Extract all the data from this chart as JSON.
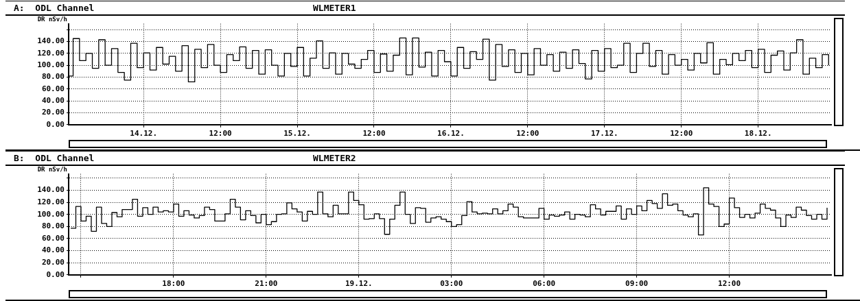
{
  "chart_data": [
    {
      "type": "step",
      "title": "A:  ODL Channel",
      "subtitle": "WLMETER1",
      "ylabel": "DR nSv/h",
      "xlim": [
        "--12-13T12:18",
        "--12-18T11:24"
      ],
      "xticks": [
        {
          "value": "--12-14",
          "label": "14.12."
        },
        {
          "value": "--12-14T12:00",
          "label": "12:00"
        },
        {
          "value": "--12-15",
          "label": "15.12."
        },
        {
          "value": "--12-15T12:00",
          "label": "12:00"
        },
        {
          "value": "--12-16",
          "label": "16.12."
        },
        {
          "value": "--12-16T12:00",
          "label": "12:00"
        },
        {
          "value": "--12-17",
          "label": "17.12."
        },
        {
          "value": "--12-17T12:00",
          "label": "12:00"
        },
        {
          "value": "--12-18",
          "label": "18.12."
        }
      ],
      "ylim": [
        0,
        170
      ],
      "yticks": [
        {
          "value": 0,
          "label": "0.00"
        },
        {
          "value": 20,
          "label": "20.00"
        },
        {
          "value": 40,
          "label": "40.00"
        },
        {
          "value": 60,
          "label": "60.00"
        },
        {
          "value": 80,
          "label": "80.00"
        },
        {
          "value": 100,
          "label": "100.00"
        },
        {
          "value": 120,
          "label": "120.00"
        },
        {
          "value": 140,
          "label": "140.00"
        },
        {
          "value": 160,
          "label": null
        }
      ],
      "grid": true,
      "marker": "none",
      "line_style": "solid",
      "series": [
        {
          "color": "#000000",
          "x": [
            "--12-13T12:24",
            "--12-13T13:00",
            "--12-13T14:00",
            "--12-13T15:00",
            "--12-13T16:00",
            "--12-13T17:00",
            "--12-13T18:00",
            "--12-13T19:00",
            "--12-13T20:00",
            "--12-13T21:00",
            "--12-13T22:00",
            "--12-13T23:00",
            "--12-14T00:00",
            "--12-14T01:00",
            "--12-14T02:00",
            "--12-14T03:00",
            "--12-14T04:00",
            "--12-14T05:00",
            "--12-14T06:00",
            "--12-14T07:00",
            "--12-14T08:00",
            "--12-14T09:00",
            "--12-14T10:00",
            "--12-14T11:00",
            "--12-14T12:00",
            "--12-14T13:00",
            "--12-14T14:00",
            "--12-14T15:00",
            "--12-14T16:00",
            "--12-14T17:00",
            "--12-14T18:00",
            "--12-14T19:00",
            "--12-14T20:00",
            "--12-14T21:00",
            "--12-14T22:00",
            "--12-14T23:00",
            "--12-15T00:00",
            "--12-15T01:00",
            "--12-15T02:00",
            "--12-15T03:00",
            "--12-15T04:00",
            "--12-15T05:00",
            "--12-15T06:00",
            "--12-15T07:00",
            "--12-15T08:00",
            "--12-15T09:00",
            "--12-15T10:00",
            "--12-15T11:00",
            "--12-15T12:00",
            "--12-15T13:00",
            "--12-15T14:00",
            "--12-15T15:00",
            "--12-15T16:00",
            "--12-15T17:00",
            "--12-15T18:00",
            "--12-15T19:00",
            "--12-15T20:00",
            "--12-15T21:00",
            "--12-15T22:00",
            "--12-15T23:00",
            "--12-16T00:00",
            "--12-16T01:00",
            "--12-16T02:00",
            "--12-16T03:00",
            "--12-16T04:00",
            "--12-16T05:00",
            "--12-16T06:00",
            "--12-16T07:00",
            "--12-16T08:00",
            "--12-16T09:00",
            "--12-16T10:00",
            "--12-16T11:00",
            "--12-16T12:00",
            "--12-16T13:00",
            "--12-16T14:00",
            "--12-16T15:00",
            "--12-16T16:00",
            "--12-16T17:00",
            "--12-16T18:00",
            "--12-16T19:00",
            "--12-16T20:00",
            "--12-16T21:00",
            "--12-16T22:00",
            "--12-16T23:00",
            "--12-17T00:00",
            "--12-17T01:00",
            "--12-17T02:00",
            "--12-17T03:00",
            "--12-17T04:00",
            "--12-17T05:00",
            "--12-17T06:00",
            "--12-17T07:00",
            "--12-17T08:00",
            "--12-17T09:00",
            "--12-17T10:00",
            "--12-17T11:00",
            "--12-17T12:00",
            "--12-17T13:00",
            "--12-17T14:00",
            "--12-17T15:00",
            "--12-17T16:00",
            "--12-17T17:00",
            "--12-17T18:00",
            "--12-17T19:00",
            "--12-17T20:00",
            "--12-17T21:00",
            "--12-17T22:00",
            "--12-17T23:00",
            "--12-18T00:00",
            "--12-18T01:00",
            "--12-18T02:00",
            "--12-18T03:00",
            "--12-18T04:00",
            "--12-18T05:00",
            "--12-18T06:00",
            "--12-18T07:00",
            "--12-18T08:00",
            "--12-18T09:00",
            "--12-18T10:00",
            "--12-18T11:00"
          ],
          "values": [
            82,
            145,
            108,
            120,
            95,
            143,
            100,
            128,
            88,
            75,
            137,
            96,
            121,
            92,
            130,
            102,
            115,
            90,
            133,
            72,
            127,
            96,
            135,
            100,
            88,
            118,
            108,
            131,
            95,
            125,
            85,
            126,
            100,
            82,
            120,
            98,
            130,
            82,
            112,
            141,
            95,
            121,
            85,
            120,
            102,
            95,
            110,
            125,
            88,
            119,
            90,
            117,
            146,
            84,
            146,
            97,
            122,
            82,
            125,
            106,
            82,
            130,
            95,
            123,
            110,
            144,
            75,
            135,
            98,
            126,
            88,
            120,
            84,
            128,
            100,
            118,
            90,
            122,
            95,
            126,
            103,
            77,
            125,
            90,
            128,
            96,
            100,
            137,
            88,
            120,
            137,
            98,
            125,
            85,
            118,
            100,
            110,
            92,
            120,
            104,
            138,
            85,
            110,
            101,
            120,
            108,
            125,
            96,
            127,
            88,
            117,
            124,
            92,
            121,
            143,
            85,
            112,
            96,
            118,
            100
          ]
        }
      ]
    },
    {
      "type": "step",
      "title": "B:  ODL Channel",
      "subtitle": "WLMETER2",
      "ylabel": "DR nSv/h",
      "xlim": [
        "--12-18T14:36",
        "--12-19T15:18"
      ],
      "xticks": [
        {
          "value": "--12-18T15:00",
          "label": null
        },
        {
          "value": "--12-18T18:00",
          "label": "18:00"
        },
        {
          "value": "--12-18T21:00",
          "label": "21:00"
        },
        {
          "value": "--12-19",
          "label": "19.12."
        },
        {
          "value": "--12-19T03:00",
          "label": "03:00"
        },
        {
          "value": "--12-19T06:00",
          "label": "06:00"
        },
        {
          "value": "--12-19T09:00",
          "label": "09:00"
        },
        {
          "value": "--12-19T12:00",
          "label": "12:00"
        }
      ],
      "ylim": [
        0,
        167
      ],
      "yticks": [
        {
          "value": 0,
          "label": "0.00"
        },
        {
          "value": 20,
          "label": "20.00"
        },
        {
          "value": 40,
          "label": "40.00"
        },
        {
          "value": 60,
          "label": "60.00"
        },
        {
          "value": 80,
          "label": "80.00"
        },
        {
          "value": 100,
          "label": "100.00"
        },
        {
          "value": 120,
          "label": "120.00"
        },
        {
          "value": 140,
          "label": "140.00"
        },
        {
          "value": 160,
          "label": null
        }
      ],
      "grid": true,
      "marker": "none",
      "line_style": "solid",
      "series": [
        {
          "color": "#000000",
          "x": [
            "--12-18T14:40",
            "--12-18T14:50",
            "--12-18T15:00",
            "--12-18T15:10",
            "--12-18T15:20",
            "--12-18T15:30",
            "--12-18T15:40",
            "--12-18T15:50",
            "--12-18T16:00",
            "--12-18T16:10",
            "--12-18T16:20",
            "--12-18T16:30",
            "--12-18T16:40",
            "--12-18T16:50",
            "--12-18T17:00",
            "--12-18T17:10",
            "--12-18T17:20",
            "--12-18T17:30",
            "--12-18T17:40",
            "--12-18T17:50",
            "--12-18T18:00",
            "--12-18T18:10",
            "--12-18T18:20",
            "--12-18T18:30",
            "--12-18T18:40",
            "--12-18T18:50",
            "--12-18T19:00",
            "--12-18T19:10",
            "--12-18T19:20",
            "--12-18T19:30",
            "--12-18T19:40",
            "--12-18T19:50",
            "--12-18T20:00",
            "--12-18T20:10",
            "--12-18T20:20",
            "--12-18T20:30",
            "--12-18T20:40",
            "--12-18T20:50",
            "--12-18T21:00",
            "--12-18T21:10",
            "--12-18T21:20",
            "--12-18T21:30",
            "--12-18T21:40",
            "--12-18T21:50",
            "--12-18T22:00",
            "--12-18T22:10",
            "--12-18T22:20",
            "--12-18T22:30",
            "--12-18T22:40",
            "--12-18T22:50",
            "--12-18T23:00",
            "--12-18T23:10",
            "--12-18T23:20",
            "--12-18T23:30",
            "--12-18T23:40",
            "--12-18T23:50",
            "--12-19T00:00",
            "--12-19T00:10",
            "--12-19T00:20",
            "--12-19T00:30",
            "--12-19T00:40",
            "--12-19T00:50",
            "--12-19T01:00",
            "--12-19T01:10",
            "--12-19T01:20",
            "--12-19T01:30",
            "--12-19T01:40",
            "--12-19T01:50",
            "--12-19T02:00",
            "--12-19T02:10",
            "--12-19T02:20",
            "--12-19T02:30",
            "--12-19T02:40",
            "--12-19T02:50",
            "--12-19T03:00",
            "--12-19T03:10",
            "--12-19T03:20",
            "--12-19T03:30",
            "--12-19T03:40",
            "--12-19T03:50",
            "--12-19T04:00",
            "--12-19T04:10",
            "--12-19T04:20",
            "--12-19T04:30",
            "--12-19T04:40",
            "--12-19T04:50",
            "--12-19T05:00",
            "--12-19T05:10",
            "--12-19T05:20",
            "--12-19T05:30",
            "--12-19T05:40",
            "--12-19T05:50",
            "--12-19T06:00",
            "--12-19T06:10",
            "--12-19T06:20",
            "--12-19T06:30",
            "--12-19T06:40",
            "--12-19T06:50",
            "--12-19T07:00",
            "--12-19T07:10",
            "--12-19T07:20",
            "--12-19T07:30",
            "--12-19T07:40",
            "--12-19T07:50",
            "--12-19T08:00",
            "--12-19T08:10",
            "--12-19T08:20",
            "--12-19T08:30",
            "--12-19T08:40",
            "--12-19T08:50",
            "--12-19T09:00",
            "--12-19T09:10",
            "--12-19T09:20",
            "--12-19T09:30",
            "--12-19T09:40",
            "--12-19T09:50",
            "--12-19T10:00",
            "--12-19T10:10",
            "--12-19T10:20",
            "--12-19T10:30",
            "--12-19T10:40",
            "--12-19T10:50",
            "--12-19T11:00",
            "--12-19T11:10",
            "--12-19T11:20",
            "--12-19T11:30",
            "--12-19T11:40",
            "--12-19T11:50",
            "--12-19T12:00",
            "--12-19T12:10",
            "--12-19T12:20",
            "--12-19T12:30",
            "--12-19T12:40",
            "--12-19T12:50",
            "--12-19T13:00",
            "--12-19T13:10",
            "--12-19T13:20",
            "--12-19T13:30",
            "--12-19T13:40",
            "--12-19T13:50",
            "--12-19T14:00",
            "--12-19T14:10",
            "--12-19T14:20",
            "--12-19T14:30",
            "--12-19T14:40",
            "--12-19T14:50",
            "--12-19T15:00",
            "--12-19T15:10"
          ],
          "values": [
            77,
            113,
            89,
            97,
            72,
            112,
            85,
            80,
            103,
            96,
            108,
            108,
            125,
            97,
            111,
            100,
            112,
            104,
            106,
            104,
            117,
            97,
            106,
            99,
            94,
            98,
            112,
            108,
            89,
            89,
            101,
            125,
            112,
            91,
            106,
            98,
            86,
            100,
            83,
            88,
            100,
            101,
            119,
            109,
            104,
            89,
            105,
            100,
            137,
            101,
            96,
            115,
            101,
            101,
            137,
            123,
            116,
            92,
            93,
            101,
            93,
            67,
            92,
            115,
            137,
            100,
            85,
            111,
            110,
            87,
            94,
            96,
            92,
            88,
            80,
            83,
            98,
            121,
            104,
            101,
            102,
            101,
            109,
            101,
            106,
            117,
            112,
            96,
            94,
            94,
            94,
            110,
            92,
            99,
            97,
            99,
            104,
            92,
            100,
            99,
            96,
            116,
            109,
            99,
            105,
            105,
            114,
            92,
            109,
            100,
            114,
            106,
            123,
            118,
            110,
            134,
            115,
            117,
            106,
            99,
            96,
            101,
            66,
            144,
            117,
            113,
            80,
            84,
            127,
            111,
            95,
            100,
            94,
            102,
            117,
            110,
            107,
            94,
            80,
            99,
            95,
            112,
            107,
            98,
            92,
            100,
            92,
            111
          ]
        }
      ]
    }
  ]
}
